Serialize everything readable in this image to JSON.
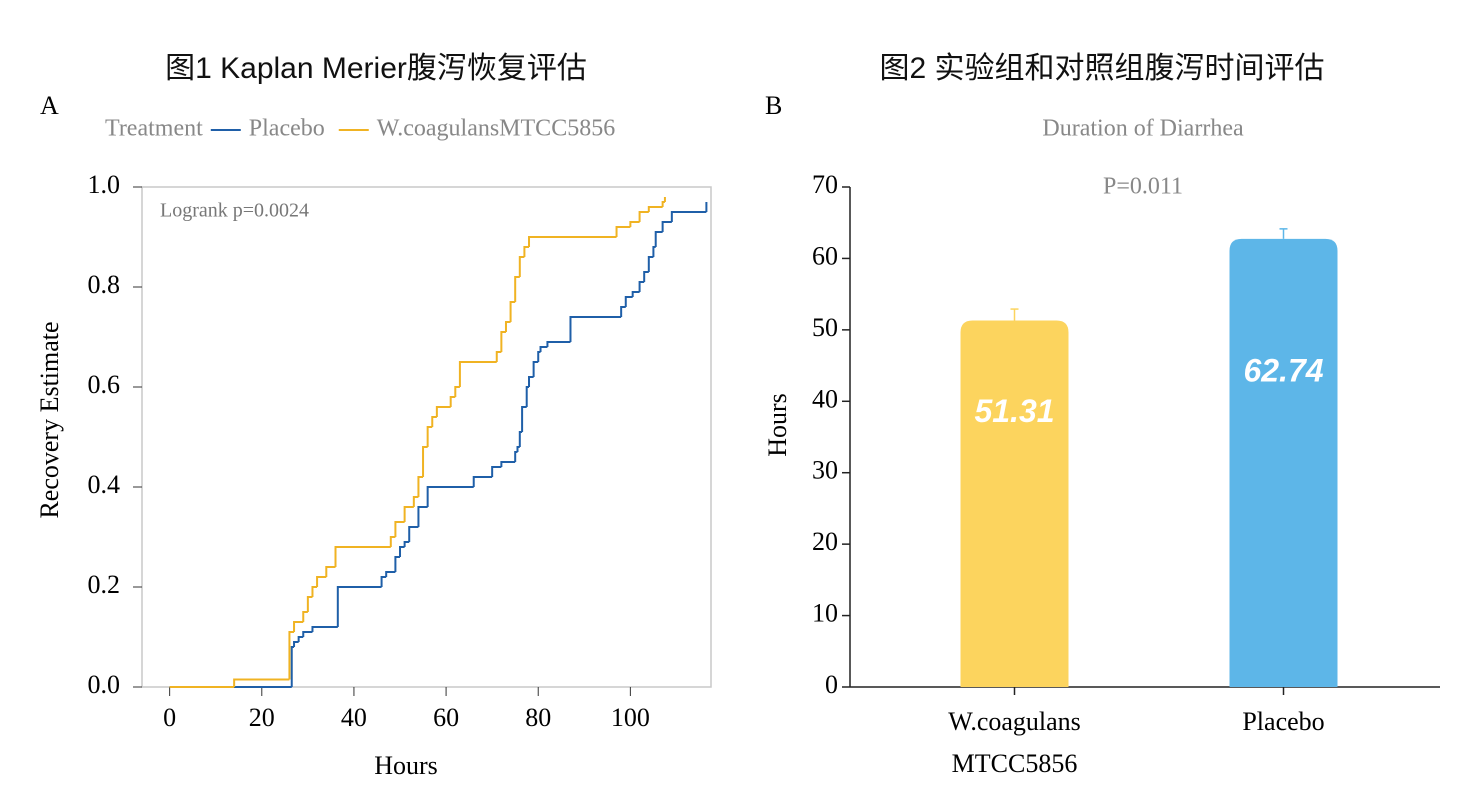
{
  "chart_data": [
    {
      "type": "step",
      "panel": "A",
      "title": "图1 Kaplan Merier腹泻恢复评估",
      "legend_title": "Treatment",
      "annotation": "Logrank p=0.0024",
      "xlabel": "Hours",
      "ylabel": "Recovery Estimate",
      "xlim": [
        -6,
        117.5
      ],
      "xticks": [
        0,
        20,
        40,
        60,
        80,
        100
      ],
      "ylim": [
        0,
        1
      ],
      "yticks": [
        {
          "value": 0,
          "label": "0.0"
        },
        0.2,
        0.4,
        0.6,
        0.8,
        {
          "value": 1,
          "label": "1.0"
        }
      ],
      "series": [
        {
          "name": "Placebo",
          "color": "#1f5fa8",
          "x": [
            0,
            26.5,
            27,
            28,
            29,
            31,
            36.5,
            46,
            47,
            49,
            50,
            51,
            52,
            54,
            56,
            66,
            70,
            72,
            75,
            75.5,
            76,
            76.5,
            77.5,
            78,
            79,
            80,
            80.5,
            82,
            87,
            98,
            99,
            100.5,
            102,
            103,
            104,
            105,
            105.5,
            107,
            109,
            116.5
          ],
          "values": [
            0,
            0.08,
            0.09,
            0.1,
            0.11,
            0.12,
            0.2,
            0.22,
            0.23,
            0.26,
            0.28,
            0.29,
            0.32,
            0.36,
            0.4,
            0.42,
            0.44,
            0.45,
            0.47,
            0.48,
            0.51,
            0.56,
            0.6,
            0.62,
            0.65,
            0.67,
            0.68,
            0.69,
            0.74,
            0.76,
            0.78,
            0.79,
            0.81,
            0.83,
            0.86,
            0.88,
            0.91,
            0.93,
            0.95,
            0.97
          ]
        },
        {
          "name": "W.coagulansMTCC5856",
          "color": "#f0b323",
          "x": [
            0,
            14,
            26,
            27,
            29,
            30,
            31,
            32,
            34,
            36,
            48,
            49,
            51,
            53,
            54,
            55,
            56,
            57,
            58,
            61,
            62,
            63,
            71,
            72,
            73,
            74,
            75,
            76,
            77,
            78,
            97,
            100,
            102,
            104,
            107,
            107.5
          ],
          "values": [
            0,
            0.015,
            0.11,
            0.13,
            0.15,
            0.18,
            0.2,
            0.22,
            0.24,
            0.28,
            0.3,
            0.33,
            0.36,
            0.38,
            0.42,
            0.48,
            0.52,
            0.54,
            0.56,
            0.58,
            0.6,
            0.65,
            0.67,
            0.71,
            0.73,
            0.77,
            0.82,
            0.86,
            0.88,
            0.9,
            0.92,
            0.93,
            0.95,
            0.96,
            0.97,
            0.98
          ]
        }
      ]
    },
    {
      "type": "bar",
      "panel": "B",
      "title": "图2 实验组和对照组腹泻时间评估",
      "subtitle": "Duration of Diarrhea",
      "annotation": "P=0.011",
      "ylabel": "Hours",
      "categories": [
        "W.coagulans\nMTCC5856",
        "Placebo"
      ],
      "values": [
        51.31,
        62.74
      ],
      "errors": [
        1.6,
        1.4
      ],
      "colors": [
        "#fcd45e",
        "#5db6e8"
      ],
      "ylim": [
        0,
        70
      ],
      "yticks": [
        0,
        10,
        20,
        30,
        40,
        50,
        60,
        70
      ]
    }
  ]
}
